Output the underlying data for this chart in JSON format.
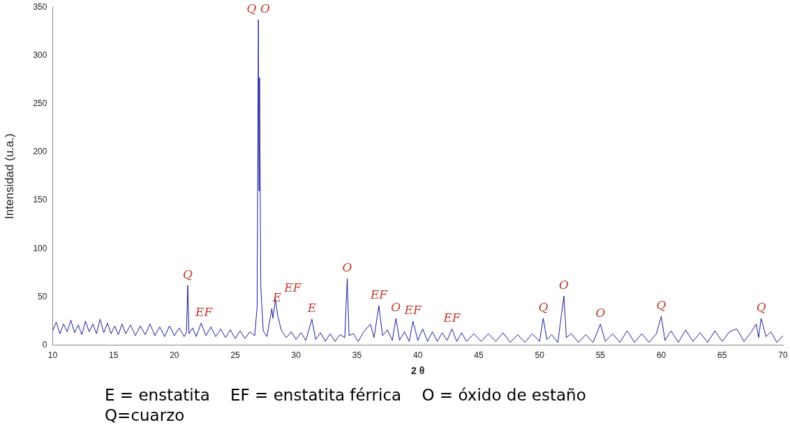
{
  "chart_data": {
    "type": "line",
    "xlabel": "2 θ",
    "ylabel": "Intensidad (u.a.)",
    "xlim": [
      10,
      70
    ],
    "xticks": [
      10,
      15,
      20,
      25,
      30,
      35,
      40,
      45,
      50,
      55,
      60,
      65,
      70
    ],
    "ylim": [
      0,
      350
    ],
    "yticks": [
      0,
      50,
      100,
      150,
      200,
      250,
      300,
      350
    ],
    "grid": false,
    "legend": false,
    "marker": "none",
    "line_style": "solid",
    "x": [
      10,
      10.3,
      10.6,
      10.9,
      11.2,
      11.5,
      11.8,
      12.1,
      12.4,
      12.7,
      13,
      13.3,
      13.6,
      13.9,
      14.2,
      14.5,
      14.8,
      15.1,
      15.4,
      15.7,
      16,
      16.4,
      16.8,
      17.2,
      17.6,
      18,
      18.4,
      18.8,
      19.2,
      19.6,
      20,
      20.4,
      20.8,
      21.0,
      21.1,
      21.2,
      21.5,
      21.8,
      22.2,
      22.6,
      23,
      23.4,
      23.8,
      24.2,
      24.6,
      25,
      25.4,
      25.8,
      26.2,
      26.6,
      26.8,
      26.9,
      26.95,
      27.0,
      27.1,
      27.3,
      27.6,
      27.9,
      28.0,
      28.1,
      28.3,
      28.5,
      28.8,
      29.2,
      29.6,
      30,
      30.4,
      30.8,
      31.3,
      31.6,
      32,
      32.4,
      32.8,
      33.2,
      33.6,
      34.0,
      34.2,
      34.35,
      34.7,
      35.1,
      35.5,
      36.1,
      36.4,
      36.8,
      37.1,
      37.5,
      37.9,
      38.2,
      38.5,
      38.9,
      39.3,
      39.6,
      40,
      40.4,
      40.8,
      41.2,
      41.6,
      42,
      42.4,
      42.8,
      43.2,
      43.6,
      44,
      44.6,
      45.2,
      45.8,
      46.4,
      47,
      47.6,
      48.2,
      48.8,
      49.4,
      50,
      50.3,
      50.6,
      51,
      51.5,
      52.0,
      52.2,
      52.6,
      53.2,
      53.8,
      54.4,
      55.0,
      55.4,
      56,
      56.6,
      57.2,
      57.8,
      58.4,
      59,
      59.6,
      60.0,
      60.3,
      60.8,
      61.4,
      62,
      62.6,
      63.2,
      63.8,
      64.4,
      65,
      65.6,
      66.2,
      66.8,
      67.4,
      67.8,
      68.0,
      68.2,
      68.6,
      69,
      69.5,
      70
    ],
    "series": [
      {
        "color": "#1c1c9c",
        "values": [
          15,
          24,
          12,
          22,
          14,
          26,
          13,
          21,
          11,
          25,
          14,
          22,
          12,
          27,
          13,
          23,
          12,
          20,
          11,
          22,
          12,
          21,
          10,
          20,
          11,
          22,
          10,
          19,
          9,
          20,
          10,
          18,
          9,
          14,
          62,
          12,
          18,
          9,
          23,
          10,
          19,
          9,
          17,
          8,
          16,
          7,
          15,
          7,
          14,
          10,
          40,
          337,
          160,
          277,
          60,
          15,
          9,
          30,
          38,
          28,
          48,
          30,
          15,
          8,
          14,
          6,
          13,
          5,
          27,
          6,
          13,
          4,
          12,
          4,
          11,
          8,
          69,
          10,
          12,
          4,
          13,
          22,
          8,
          41,
          10,
          16,
          5,
          28,
          5,
          14,
          4,
          25,
          5,
          17,
          4,
          14,
          4,
          13,
          5,
          17,
          4,
          13,
          4,
          12,
          4,
          12,
          4,
          13,
          3,
          11,
          3,
          12,
          4,
          28,
          6,
          11,
          3,
          51,
          8,
          12,
          3,
          11,
          3,
          22,
          4,
          12,
          3,
          15,
          3,
          12,
          3,
          12,
          30,
          5,
          15,
          3,
          16,
          4,
          13,
          3,
          15,
          4,
          14,
          17,
          4,
          14,
          22,
          8,
          28,
          9,
          14,
          3,
          10
        ]
      }
    ],
    "annotations": [
      {
        "text": "Q",
        "x": 21.1,
        "y": 62
      },
      {
        "text": "EF",
        "x": 22.2,
        "y": 23
      },
      {
        "text": "Q O",
        "x": 26.9,
        "y": 337
      },
      {
        "text": "E",
        "x": 28.0,
        "y": 38
      },
      {
        "text": "EF",
        "x": 28.3,
        "y": 48
      },
      {
        "text": "E",
        "x": 31.3,
        "y": 27
      },
      {
        "text": "O",
        "x": 34.2,
        "y": 69
      },
      {
        "text": "EF",
        "x": 36.8,
        "y": 41
      },
      {
        "text": "O",
        "x": 38.2,
        "y": 28
      },
      {
        "text": "EF",
        "x": 39.6,
        "y": 25
      },
      {
        "text": "EF",
        "x": 42.8,
        "y": 17
      },
      {
        "text": "Q",
        "x": 50.3,
        "y": 28
      },
      {
        "text": "O",
        "x": 52.0,
        "y": 51
      },
      {
        "text": "O",
        "x": 55.0,
        "y": 22
      },
      {
        "text": "Q",
        "x": 60.0,
        "y": 30
      },
      {
        "text": "Q",
        "x": 68.2,
        "y": 28
      },
      "E = enstatita    EF = enstatita férrica    O = óxido de estaño",
      "Q=cuarzo"
    ]
  }
}
